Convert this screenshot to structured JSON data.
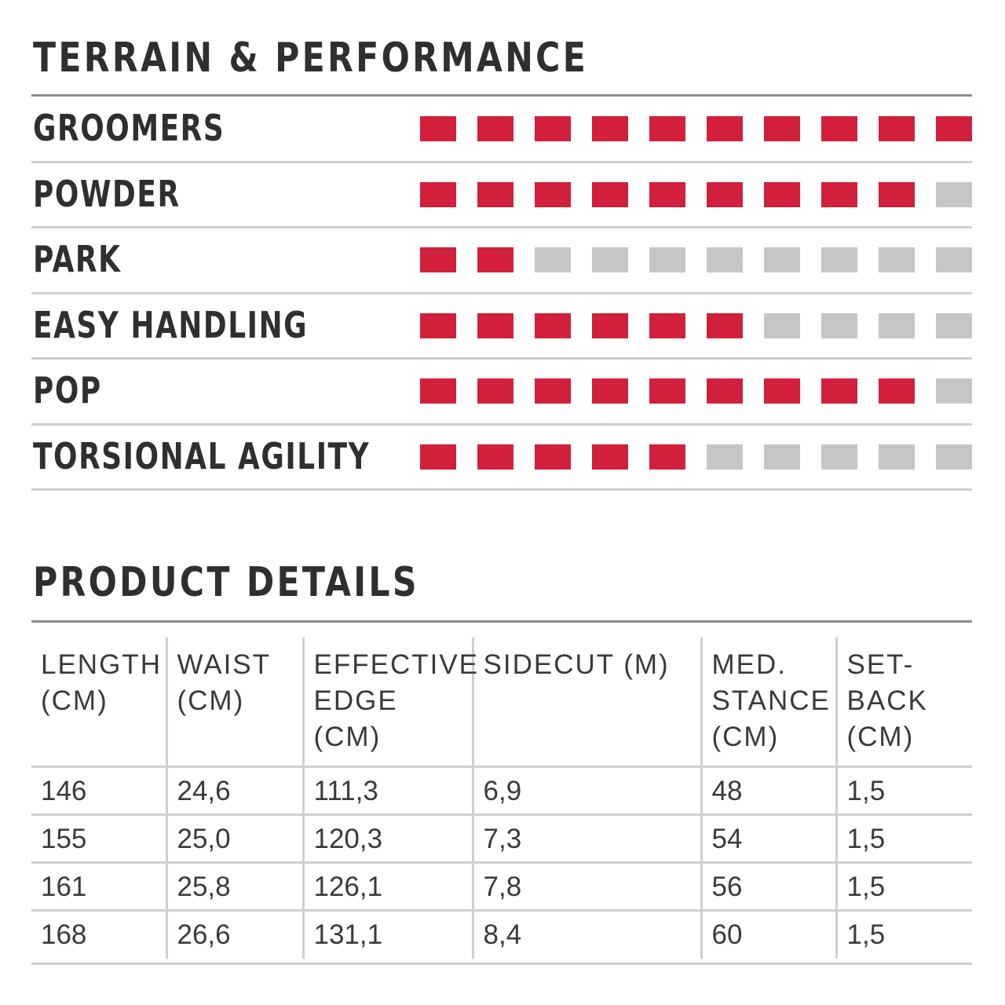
{
  "terrain_section": {
    "title": "TERRAIN & PERFORMANCE",
    "max_rating": 10,
    "on_color": "#d11f3c",
    "off_color": "#c6c6c6",
    "ratings": [
      {
        "label": "GROOMERS",
        "value": 10
      },
      {
        "label": "POWDER",
        "value": 9
      },
      {
        "label": "PARK",
        "value": 2
      },
      {
        "label": "EASY HANDLING",
        "value": 6
      },
      {
        "label": "POP",
        "value": 9
      },
      {
        "label": "TORSIONAL AGILITY",
        "value": 5
      }
    ]
  },
  "details_section": {
    "title": "PRODUCT DETAILS",
    "columns": [
      "LENGTH\n(CM)",
      "WAISt\n(CM)",
      "EFFECTIVE\nEDGE (CM)",
      "SIDECUT (M)",
      "MED.\nSTANCE\n(CM)",
      "SET-\nBACK\n(CM)"
    ],
    "rows": [
      [
        "146",
        "24,6",
        "111,3",
        "6,9",
        "48",
        "1,5"
      ],
      [
        "155",
        "25,0",
        "120,3",
        "7,3",
        "54",
        "1,5"
      ],
      [
        "161",
        "25,8",
        "126,1",
        "7,8",
        "56",
        "1,5"
      ],
      [
        "168",
        "26,6",
        "131,1",
        "8,4",
        "60",
        "1,5"
      ]
    ]
  }
}
